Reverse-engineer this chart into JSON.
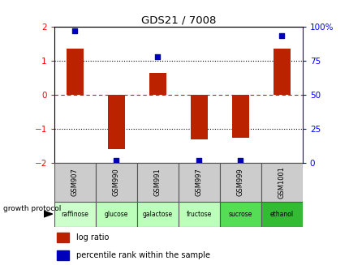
{
  "title": "GDS21 / 7008",
  "samples": [
    "GSM907",
    "GSM990",
    "GSM991",
    "GSM997",
    "GSM999",
    "GSM1001"
  ],
  "protocols": [
    "raffinose",
    "glucose",
    "galactose",
    "fructose",
    "sucrose",
    "ethanol"
  ],
  "log_ratios": [
    1.35,
    -1.6,
    0.65,
    -1.3,
    -1.25,
    1.35
  ],
  "percentile_ranks": [
    97,
    2,
    78,
    2,
    2,
    93
  ],
  "protocol_colors": [
    "#ccffcc",
    "#bbffbb",
    "#bbffbb",
    "#bbffbb",
    "#55dd55",
    "#33bb33"
  ],
  "bar_color": "#bb2200",
  "dot_color": "#0000bb",
  "ylim_left": [
    -2,
    2
  ],
  "ylim_right": [
    0,
    100
  ],
  "yticks_left": [
    -2,
    -1,
    0,
    1,
    2
  ],
  "yticks_right": [
    0,
    25,
    50,
    75,
    100
  ],
  "ytick_labels_right": [
    "0",
    "25",
    "50",
    "75",
    "100%"
  ],
  "background_color": "#ffffff",
  "legend_log_ratio_label": "log ratio",
  "legend_percentile_label": "percentile rank within the sample",
  "growth_protocol_label": "growth protocol",
  "sample_cell_color": "#cccccc",
  "bar_width": 0.4
}
